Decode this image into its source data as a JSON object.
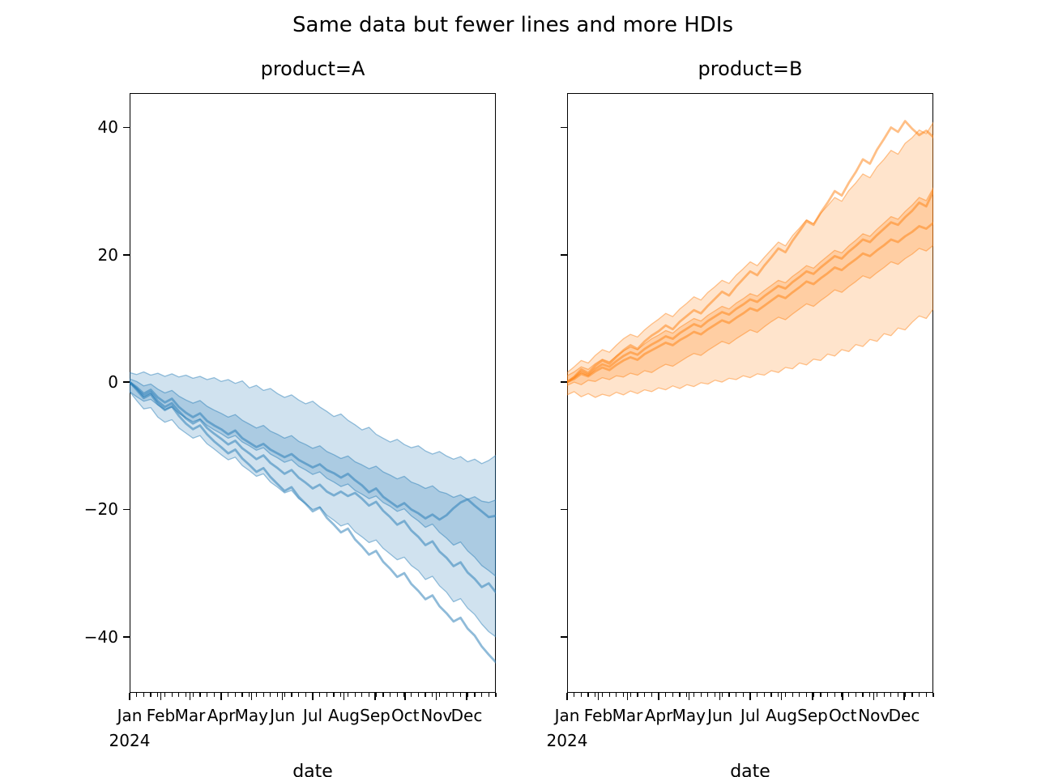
{
  "chart_data": {
    "type": "line",
    "title": "Same data but fewer lines and more HDIs",
    "xlabel": "date",
    "ylabel": "",
    "axes": {
      "ylim": [
        -48.8,
        45.4
      ],
      "yticks": [
        {
          "value": 40,
          "label": "40"
        },
        {
          "value": 20,
          "label": "20"
        },
        {
          "value": 0,
          "label": "0"
        },
        {
          "value": -20,
          "label": "−20"
        },
        {
          "value": -40,
          "label": "−40"
        }
      ],
      "x_interval_days": 7,
      "xlim_days": [
        0,
        364
      ],
      "month_start_days": [
        0,
        31,
        60,
        91,
        121,
        152,
        182,
        213,
        244,
        274,
        305,
        335
      ],
      "month_labels": [
        "Jan",
        "Feb",
        "Mar",
        "Apr",
        "May",
        "Jun",
        "Jul",
        "Aug",
        "Sep",
        "Oct",
        "Nov",
        "Dec"
      ],
      "year_label": "2024",
      "grid": false,
      "legend": "none"
    },
    "style": {
      "band_fill_opacity": 0.21,
      "band_edge_opacity": 0.45,
      "band_edge_width": 1.3,
      "line_opacity": 0.5,
      "line_width": 2.8
    },
    "facets": [
      {
        "title": "product=A",
        "color": "#1f77b4",
        "bands": [
          {
            "name": "outer-hdi",
            "upper": [
              1.5,
              1.2,
              1.6,
              1.1,
              1.4,
              0.9,
              1.3,
              0.8,
              1.1,
              0.6,
              0.9,
              0.4,
              0.7,
              0.1,
              0.4,
              -0.2,
              0.2,
              -0.9,
              -0.5,
              -1.3,
              -1.0,
              -1.8,
              -2.4,
              -2.0,
              -2.8,
              -3.4,
              -3.0,
              -3.9,
              -4.6,
              -5.4,
              -5.0,
              -6.0,
              -6.7,
              -7.5,
              -7.1,
              -8.2,
              -8.8,
              -9.4,
              -9.0,
              -9.8,
              -10.3,
              -10.0,
              -10.8,
              -11.3,
              -10.9,
              -11.6,
              -12.1,
              -11.7,
              -12.5,
              -12.1,
              -12.8,
              -12.3,
              -11.5
            ],
            "lower": [
              -1.5,
              -2.9,
              -4.2,
              -4.0,
              -5.5,
              -6.3,
              -5.9,
              -7.2,
              -8.0,
              -8.8,
              -8.4,
              -9.7,
              -10.5,
              -11.4,
              -12.2,
              -11.8,
              -13.1,
              -13.9,
              -14.8,
              -14.4,
              -15.7,
              -16.5,
              -17.4,
              -17.0,
              -18.3,
              -19.1,
              -20.0,
              -19.6,
              -20.9,
              -21.7,
              -22.6,
              -22.2,
              -23.5,
              -24.3,
              -25.2,
              -24.8,
              -26.1,
              -27.0,
              -27.9,
              -27.5,
              -28.8,
              -29.6,
              -31.0,
              -30.5,
              -32.0,
              -33.0,
              -34.5,
              -34.0,
              -35.5,
              -36.5,
              -38.0,
              -39.2,
              -40.0
            ]
          },
          {
            "name": "inner-hdi",
            "upper": [
              0.5,
              0.1,
              -0.6,
              -0.3,
              -1.1,
              -1.7,
              -1.3,
              -2.2,
              -2.8,
              -3.3,
              -2.9,
              -3.8,
              -4.4,
              -4.9,
              -5.5,
              -5.1,
              -6.0,
              -6.6,
              -7.2,
              -6.8,
              -7.7,
              -8.2,
              -8.8,
              -8.4,
              -9.3,
              -9.8,
              -10.4,
              -10.0,
              -10.9,
              -11.4,
              -12.0,
              -11.6,
              -12.5,
              -13.0,
              -13.6,
              -13.2,
              -14.1,
              -14.6,
              -15.2,
              -14.8,
              -15.7,
              -16.1,
              -16.7,
              -16.3,
              -17.2,
              -17.5,
              -18.1,
              -17.7,
              -18.4,
              -18.0,
              -18.7,
              -18.9,
              -18.5
            ],
            "lower": [
              -1.5,
              -2.3,
              -3.0,
              -2.7,
              -3.6,
              -4.3,
              -3.9,
              -4.9,
              -5.6,
              -6.2,
              -5.8,
              -6.8,
              -7.5,
              -8.1,
              -8.8,
              -8.4,
              -9.4,
              -10.0,
              -10.7,
              -10.3,
              -11.3,
              -11.9,
              -12.6,
              -12.2,
              -13.2,
              -13.8,
              -14.5,
              -14.1,
              -15.1,
              -15.7,
              -16.4,
              -16.0,
              -17.0,
              -17.6,
              -18.3,
              -17.9,
              -18.9,
              -19.5,
              -20.3,
              -19.9,
              -21.0,
              -21.8,
              -22.8,
              -22.3,
              -23.6,
              -24.5,
              -25.6,
              -25.1,
              -26.5,
              -27.5,
              -28.8,
              -29.6,
              -30.5
            ]
          }
        ],
        "lines": [
          {
            "name": "sample-1",
            "values": [
              0.0,
              -0.8,
              -1.8,
              -1.2,
              -2.4,
              -3.2,
              -2.6,
              -3.9,
              -4.8,
              -5.5,
              -4.9,
              -6.1,
              -6.8,
              -7.4,
              -8.2,
              -7.6,
              -8.8,
              -9.5,
              -10.2,
              -9.7,
              -10.6,
              -11.2,
              -11.8,
              -11.3,
              -12.2,
              -12.8,
              -13.4,
              -12.9,
              -13.8,
              -14.3,
              -15.0,
              -14.4,
              -15.4,
              -16.2,
              -17.3,
              -16.7,
              -18.0,
              -18.8,
              -19.6,
              -19.0,
              -20.0,
              -20.6,
              -21.4,
              -20.8,
              -21.6,
              -20.9,
              -19.8,
              -18.9,
              -18.4,
              -19.4,
              -20.3,
              -21.2,
              -21.0
            ]
          },
          {
            "name": "sample-2",
            "values": [
              0.0,
              -1.0,
              -2.2,
              -1.6,
              -3.0,
              -3.9,
              -3.3,
              -4.6,
              -5.7,
              -6.5,
              -5.9,
              -7.2,
              -8.1,
              -8.9,
              -9.8,
              -9.2,
              -10.4,
              -11.2,
              -12.1,
              -11.5,
              -12.7,
              -13.5,
              -14.4,
              -13.8,
              -15.0,
              -15.8,
              -16.7,
              -16.1,
              -17.2,
              -17.8,
              -17.2,
              -17.9,
              -17.4,
              -18.3,
              -19.4,
              -18.8,
              -20.2,
              -21.2,
              -22.4,
              -21.8,
              -23.3,
              -24.3,
              -25.6,
              -25.0,
              -26.6,
              -27.6,
              -28.9,
              -28.3,
              -29.9,
              -30.9,
              -32.2,
              -31.6,
              -33.0
            ]
          },
          {
            "name": "sample-3",
            "values": [
              0.0,
              -1.2,
              -2.5,
              -1.9,
              -3.4,
              -4.4,
              -3.8,
              -5.3,
              -6.5,
              -7.4,
              -6.8,
              -8.2,
              -9.3,
              -10.2,
              -11.2,
              -10.6,
              -12.0,
              -13.0,
              -14.1,
              -13.5,
              -14.9,
              -16.0,
              -17.1,
              -16.5,
              -18.0,
              -19.1,
              -20.3,
              -19.7,
              -21.3,
              -22.4,
              -23.6,
              -23.0,
              -24.7,
              -25.8,
              -27.1,
              -26.5,
              -28.2,
              -29.3,
              -30.6,
              -30.0,
              -31.7,
              -32.8,
              -34.1,
              -33.5,
              -35.2,
              -36.3,
              -37.6,
              -37.0,
              -38.7,
              -39.8,
              -41.5,
              -42.8,
              -44.0
            ]
          }
        ]
      },
      {
        "title": "product=B",
        "color": "#ff7f0e",
        "bands": [
          {
            "name": "outer-hdi",
            "upper": [
              1.5,
              2.4,
              3.4,
              3.0,
              4.2,
              5.1,
              4.7,
              5.8,
              6.8,
              7.5,
              7.1,
              8.2,
              9.1,
              9.9,
              10.8,
              10.3,
              11.5,
              12.4,
              13.4,
              12.9,
              14.1,
              15.0,
              16.0,
              15.5,
              16.8,
              17.8,
              18.9,
              18.3,
              19.6,
              20.8,
              22.0,
              21.4,
              23.0,
              24.2,
              25.5,
              24.9,
              26.5,
              27.7,
              29.0,
              28.4,
              30.1,
              31.3,
              32.7,
              32.1,
              33.8,
              35.0,
              36.4,
              35.8,
              37.5,
              38.4,
              39.6,
              39.0,
              40.8
            ],
            "lower": [
              -2.0,
              -1.5,
              -2.3,
              -1.8,
              -2.4,
              -1.9,
              -2.2,
              -1.6,
              -2.0,
              -1.4,
              -1.8,
              -1.2,
              -1.5,
              -0.9,
              -1.2,
              -0.6,
              -1.0,
              -0.4,
              -0.7,
              -0.1,
              -0.3,
              0.3,
              0.0,
              0.6,
              0.4,
              1.0,
              0.7,
              1.3,
              1.1,
              1.8,
              1.5,
              2.3,
              2.1,
              3.0,
              2.7,
              3.6,
              3.4,
              4.4,
              4.1,
              5.1,
              4.8,
              5.9,
              5.6,
              6.7,
              6.4,
              7.6,
              7.3,
              8.5,
              8.2,
              9.4,
              10.4,
              10.0,
              11.5
            ]
          },
          {
            "name": "inner-hdi",
            "upper": [
              1.0,
              1.6,
              2.4,
              2.0,
              2.9,
              3.6,
              3.2,
              4.1,
              4.9,
              5.5,
              5.1,
              6.0,
              6.8,
              7.4,
              8.1,
              7.7,
              8.6,
              9.3,
              10.0,
              9.6,
              10.5,
              11.2,
              11.9,
              11.5,
              12.4,
              13.1,
              13.9,
              13.5,
              14.4,
              15.2,
              16.0,
              15.6,
              16.6,
              17.4,
              18.3,
              17.9,
              18.9,
              19.8,
              20.7,
              20.3,
              21.4,
              22.3,
              23.3,
              22.9,
              24.0,
              25.0,
              26.0,
              25.6,
              26.8,
              27.8,
              29.0,
              28.5,
              30.5
            ],
            "lower": [
              -0.5,
              0.0,
              -0.4,
              0.3,
              0.1,
              0.7,
              0.4,
              1.0,
              0.8,
              1.4,
              1.1,
              1.8,
              1.5,
              2.2,
              2.8,
              2.5,
              3.2,
              3.9,
              4.5,
              4.2,
              5.0,
              5.7,
              6.4,
              6.0,
              6.8,
              7.5,
              8.2,
              7.8,
              8.7,
              9.5,
              10.2,
              9.8,
              10.7,
              11.5,
              12.3,
              11.9,
              12.8,
              13.6,
              14.5,
              14.1,
              15.0,
              15.8,
              16.7,
              16.3,
              17.2,
              18.0,
              18.9,
              18.5,
              19.4,
              20.1,
              21.0,
              20.6,
              21.5
            ]
          }
        ],
        "lines": [
          {
            "name": "sample-1",
            "values": [
              0.0,
              0.8,
              2.0,
              1.4,
              2.6,
              3.4,
              2.9,
              4.0,
              5.0,
              5.8,
              5.2,
              6.4,
              7.3,
              8.0,
              8.9,
              8.3,
              9.5,
              10.4,
              11.3,
              10.8,
              12.0,
              13.1,
              14.2,
              13.6,
              15.0,
              16.2,
              17.4,
              16.8,
              18.3,
              19.6,
              21.0,
              20.4,
              22.2,
              23.7,
              25.3,
              24.7,
              26.6,
              28.2,
              30.0,
              29.3,
              31.3,
              33.0,
              35.0,
              34.3,
              36.5,
              38.2,
              40.0,
              39.3,
              41.0,
              39.8,
              38.8,
              39.5,
              38.5
            ]
          },
          {
            "name": "sample-2",
            "values": [
              0.0,
              0.7,
              1.6,
              1.1,
              2.1,
              2.8,
              2.4,
              3.3,
              4.1,
              4.7,
              4.3,
              5.2,
              5.9,
              6.5,
              7.2,
              6.8,
              7.7,
              8.4,
              9.1,
              8.7,
              9.6,
              10.3,
              11.0,
              10.6,
              11.5,
              12.2,
              13.0,
              12.6,
              13.5,
              14.3,
              15.1,
              14.7,
              15.7,
              16.5,
              17.4,
              17.0,
              18.0,
              18.9,
              19.8,
              19.4,
              20.5,
              21.4,
              22.4,
              22.0,
              23.1,
              24.1,
              25.1,
              24.7,
              25.9,
              26.9,
              28.2,
              27.6,
              30.0
            ]
          },
          {
            "name": "sample-3",
            "values": [
              0.0,
              0.5,
              1.3,
              0.9,
              1.7,
              2.3,
              1.9,
              2.7,
              3.4,
              3.9,
              3.5,
              4.4,
              5.0,
              5.6,
              6.2,
              5.8,
              6.6,
              7.2,
              7.9,
              7.5,
              8.3,
              9.0,
              9.7,
              9.3,
              10.1,
              10.8,
              11.6,
              11.2,
              12.0,
              12.8,
              13.6,
              13.2,
              14.1,
              14.9,
              15.8,
              15.4,
              16.3,
              17.1,
              18.0,
              17.6,
              18.5,
              19.3,
              20.2,
              19.8,
              20.7,
              21.5,
              22.4,
              22.0,
              22.9,
              23.6,
              24.5,
              24.1,
              25.0
            ]
          }
        ]
      }
    ]
  }
}
